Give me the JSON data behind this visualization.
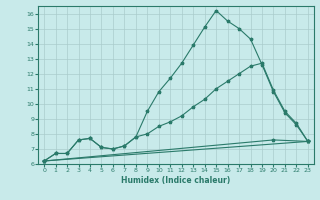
{
  "title": "",
  "xlabel": "Humidex (Indice chaleur)",
  "bg_color": "#c8eaea",
  "grid_color": "#aacccc",
  "line_color": "#2a7a6a",
  "xlim": [
    -0.5,
    23.5
  ],
  "ylim": [
    6,
    16.5
  ],
  "yticks": [
    6,
    7,
    8,
    9,
    10,
    11,
    12,
    13,
    14,
    15,
    16
  ],
  "xticks": [
    0,
    1,
    2,
    3,
    4,
    5,
    6,
    7,
    8,
    9,
    10,
    11,
    12,
    13,
    14,
    15,
    16,
    17,
    18,
    19,
    20,
    21,
    22,
    23
  ],
  "series": [
    {
      "x": [
        0,
        1,
        2,
        3,
        4,
        5,
        6,
        7,
        8,
        9,
        10,
        11,
        12,
        13,
        14,
        15,
        16,
        17,
        18,
        19,
        20,
        21,
        22,
        23
      ],
      "y": [
        6.2,
        6.7,
        6.7,
        7.6,
        7.7,
        7.1,
        7.0,
        7.2,
        7.8,
        9.5,
        10.8,
        11.7,
        12.7,
        13.9,
        15.1,
        16.2,
        15.5,
        15.0,
        14.3,
        12.6,
        10.8,
        9.4,
        8.6,
        7.5
      ]
    },
    {
      "x": [
        0,
        1,
        2,
        3,
        4,
        5,
        6,
        7,
        8,
        9,
        10,
        11,
        12,
        13,
        14,
        15,
        16,
        17,
        18,
        19,
        20,
        21,
        22,
        23
      ],
      "y": [
        6.2,
        6.7,
        6.7,
        7.6,
        7.7,
        7.1,
        7.0,
        7.2,
        7.8,
        8.0,
        8.5,
        8.8,
        9.2,
        9.8,
        10.3,
        11.0,
        11.5,
        12.0,
        12.5,
        12.7,
        10.9,
        9.5,
        8.7,
        7.5
      ]
    },
    {
      "x": [
        0,
        23
      ],
      "y": [
        6.2,
        7.5
      ]
    },
    {
      "x": [
        0,
        20,
        23
      ],
      "y": [
        6.2,
        7.6,
        7.5
      ]
    }
  ]
}
